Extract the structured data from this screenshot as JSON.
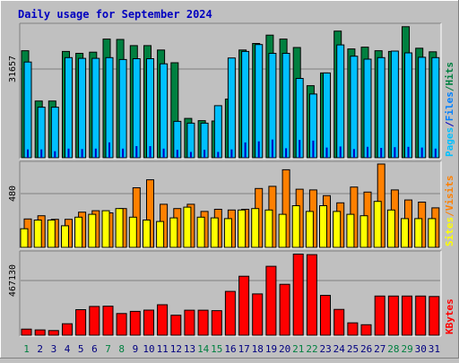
{
  "title": "Daily usage for September 2024",
  "colors": {
    "background": "#c0c0c0",
    "plot": "#c0c0c0",
    "title": "#0000c0",
    "hits": "#008040",
    "files": "#0080ff",
    "pages": "#00c0ff",
    "visits": "#ff8000",
    "sites": "#ffff00",
    "kbytes": "#ff0000",
    "weekend": "#008040",
    "weekday": "#000080"
  },
  "chart_data": [
    {
      "type": "bar",
      "days": [
        "1",
        "2",
        "3",
        "4",
        "5",
        "6",
        "7",
        "8",
        "9",
        "10",
        "11",
        "12",
        "13",
        "14",
        "15",
        "16",
        "17",
        "18",
        "19",
        "20",
        "21",
        "22",
        "23",
        "24",
        "25",
        "26",
        "27",
        "28",
        "29",
        "30",
        "31"
      ],
      "weekend_days": [
        1,
        7,
        8,
        14,
        15,
        21,
        22,
        28,
        29
      ],
      "ytick": "31657",
      "ymax": 36200,
      "legend": [
        {
          "label": "Hits",
          "color": "#008040"
        },
        {
          "label": "/",
          "color": "#008040"
        },
        {
          "label": "Files",
          "color": "#0080ff"
        },
        {
          "label": "/",
          "color": "#0000c0"
        },
        {
          "label": "Pages",
          "color": "#00c0ff"
        }
      ],
      "series": [
        {
          "name": "Hits",
          "values": [
            29400,
            15600,
            15600,
            29200,
            28700,
            29000,
            32600,
            32500,
            30800,
            30800,
            29600,
            26100,
            10800,
            10200,
            10100,
            16100,
            29600,
            31400,
            33700,
            32600,
            30300,
            19800,
            23300,
            34800,
            29900,
            30400,
            29400,
            29200,
            36000,
            30100,
            29100
          ]
        },
        {
          "name": "Files",
          "values": [
            26300,
            13900,
            13900,
            27500,
            27300,
            27300,
            27500,
            27000,
            27200,
            27200,
            25800,
            10000,
            9500,
            9500,
            14300,
            27400,
            29200,
            31100,
            28700,
            28700,
            21800,
            17500,
            23300,
            31000,
            27900,
            27100,
            27500,
            29300,
            28800,
            27600,
            27500
          ]
        },
        {
          "name": "Pages",
          "values": [
            2300,
            2300,
            1800,
            2500,
            2400,
            2500,
            4200,
            2500,
            3200,
            3200,
            2500,
            2200,
            1600,
            2200,
            1600,
            2300,
            4200,
            4500,
            5000,
            2600,
            4900,
            4700,
            2800,
            3100,
            2400,
            3000,
            2700,
            2900,
            3000,
            2800,
            2500
          ]
        }
      ]
    },
    {
      "type": "bar",
      "days": [
        "1",
        "2",
        "3",
        "4",
        "5",
        "6",
        "7",
        "8",
        "9",
        "10",
        "11",
        "12",
        "13",
        "14",
        "15",
        "16",
        "17",
        "18",
        "19",
        "20",
        "21",
        "22",
        "23",
        "24",
        "25",
        "26",
        "27",
        "28",
        "29",
        "30",
        "31"
      ],
      "ytick": "480",
      "ymax": 580,
      "legend": [
        {
          "label": "Visits",
          "color": "#ff8000"
        },
        {
          "label": "/",
          "color": "#ff8000"
        },
        {
          "label": "Sites",
          "color": "#ffff00"
        }
      ],
      "series": [
        {
          "name": "Visits",
          "values": [
            198,
            220,
            195,
            195,
            245,
            255,
            240,
            270,
            415,
            470,
            300,
            270,
            300,
            250,
            265,
            260,
            265,
            410,
            425,
            540,
            405,
            400,
            360,
            310,
            420,
            385,
            580,
            400,
            330,
            315,
            275
          ]
        },
        {
          "name": "Sites",
          "values": [
            130,
            190,
            190,
            150,
            210,
            230,
            255,
            270,
            210,
            190,
            180,
            205,
            280,
            210,
            205,
            200,
            260,
            270,
            260,
            230,
            290,
            250,
            290,
            250,
            230,
            220,
            320,
            260,
            200,
            200,
            200
          ]
        }
      ]
    },
    {
      "type": "bar",
      "days": [
        "1",
        "2",
        "3",
        "4",
        "5",
        "6",
        "7",
        "8",
        "9",
        "10",
        "11",
        "12",
        "13",
        "14",
        "15",
        "16",
        "17",
        "18",
        "19",
        "20",
        "21",
        "22",
        "23",
        "24",
        "25",
        "26",
        "27",
        "28",
        "29",
        "30",
        "31"
      ],
      "ytick": "467130",
      "ymax": 575000,
      "legend": [
        {
          "label": "KBytes",
          "color": "#ff0000"
        }
      ],
      "series": [
        {
          "name": "KBytes",
          "values": [
            43000,
            37000,
            33000,
            81000,
            180000,
            203000,
            205000,
            153000,
            168000,
            177000,
            215000,
            141000,
            176000,
            176000,
            173000,
            309000,
            416000,
            291000,
            486000,
            359000,
            572000,
            568000,
            281000,
            182000,
            87000,
            74000,
            276000,
            276000,
            276000,
            276000,
            273000
          ]
        }
      ]
    }
  ],
  "x_axis_labels": [
    "1",
    "2",
    "3",
    "4",
    "5",
    "6",
    "7",
    "8",
    "9",
    "10",
    "11",
    "12",
    "13",
    "14",
    "15",
    "16",
    "17",
    "18",
    "19",
    "20",
    "21",
    "22",
    "23",
    "24",
    "25",
    "26",
    "27",
    "28",
    "29",
    "30",
    "31"
  ]
}
